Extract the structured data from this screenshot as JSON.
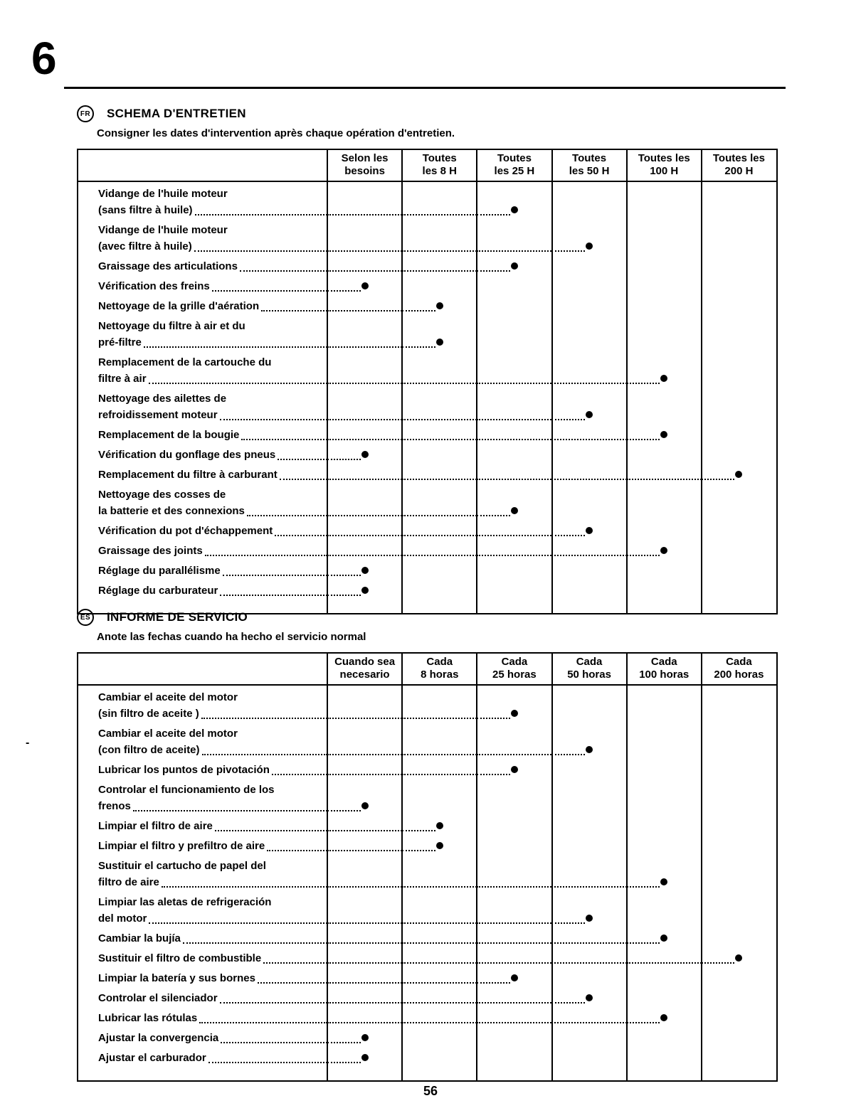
{
  "page": {
    "chapter_number": "6",
    "page_number": "56",
    "margin_mark": "-"
  },
  "bullet_color": "#000000",
  "sections": [
    {
      "lang_badge": "FR",
      "title": "SCHEMA D'ENTRETIEN",
      "subtitle": "Consigner les dates d'intervention après chaque opération d'entretien.",
      "columns": [
        [
          "Selon les",
          "besoins"
        ],
        [
          "Toutes",
          "les 8 H"
        ],
        [
          "Toutes",
          "les 25 H"
        ],
        [
          "Toutes",
          "les 50 H"
        ],
        [
          "Toutes les",
          "100 H"
        ],
        [
          "Toutes les",
          "200 H"
        ]
      ],
      "rows": [
        {
          "label_lines": [
            "Vidange de l'huile moteur",
            "(sans filtre à huile)"
          ],
          "bullet_col": 2
        },
        {
          "label_lines": [
            "Vidange de l'huile moteur",
            "(avec filtre à huile)"
          ],
          "bullet_col": 3
        },
        {
          "label_lines": [
            "Graissage des articulations"
          ],
          "bullet_col": 2
        },
        {
          "label_lines": [
            "Vérification des freins"
          ],
          "bullet_col": 0
        },
        {
          "label_lines": [
            "Nettoyage de la grille d'aération"
          ],
          "bullet_col": 1
        },
        {
          "label_lines": [
            "Nettoyage du filtre à air et du",
            "pré-filtre"
          ],
          "bullet_col": 1
        },
        {
          "label_lines": [
            "Remplacement de la cartouche du",
            "filtre à air"
          ],
          "bullet_col": 4
        },
        {
          "label_lines": [
            "Nettoyage des ailettes de",
            "refroidissement moteur"
          ],
          "bullet_col": 3
        },
        {
          "label_lines": [
            "Remplacement de la bougie"
          ],
          "bullet_col": 4
        },
        {
          "label_lines": [
            "Vérification du gonflage des pneus"
          ],
          "bullet_col": 0
        },
        {
          "label_lines": [
            "Remplacement du filtre à carburant"
          ],
          "bullet_col": 5
        },
        {
          "label_lines": [
            "Nettoyage des cosses de",
            "la batterie et des connexions"
          ],
          "bullet_col": 2
        },
        {
          "label_lines": [
            "Vérification du pot d'échappement"
          ],
          "bullet_col": 3
        },
        {
          "label_lines": [
            "Graissage des joints"
          ],
          "bullet_col": 4
        },
        {
          "label_lines": [
            "Réglage du parallélisme"
          ],
          "bullet_col": 0
        },
        {
          "label_lines": [
            "Réglage du carburateur"
          ],
          "bullet_col": 0
        }
      ]
    },
    {
      "lang_badge": "ES",
      "title": "INFORME DE SERVICIO",
      "subtitle": "Anote las fechas cuando ha hecho el servicio normal",
      "columns": [
        [
          "Cuando sea",
          "necesario"
        ],
        [
          "Cada",
          "8 horas"
        ],
        [
          "Cada",
          "25 horas"
        ],
        [
          "Cada",
          "50 horas"
        ],
        [
          "Cada",
          "100 horas"
        ],
        [
          "Cada",
          "200 horas"
        ]
      ],
      "rows": [
        {
          "label_lines": [
            "Cambiar el aceite del motor",
            "(sin filtro de aceite )"
          ],
          "bullet_col": 2
        },
        {
          "label_lines": [
            "Cambiar el aceite del motor",
            "(con filtro de aceite)"
          ],
          "bullet_col": 3
        },
        {
          "label_lines": [
            "Lubricar los puntos de pivotación"
          ],
          "bullet_col": 2
        },
        {
          "label_lines": [
            "Controlar el funcionamiento de los",
            "frenos"
          ],
          "bullet_col": 0
        },
        {
          "label_lines": [
            "Limpiar el filtro de aire"
          ],
          "bullet_col": 1
        },
        {
          "label_lines": [
            "Limpiar el filtro y prefiltro de aire"
          ],
          "bullet_col": 1
        },
        {
          "label_lines": [
            "Sustituir el cartucho de papel del",
            "filtro de aire"
          ],
          "bullet_col": 4
        },
        {
          "label_lines": [
            "Limpiar las aletas de refrigeración",
            "del motor"
          ],
          "bullet_col": 3
        },
        {
          "label_lines": [
            "Cambiar la bujía"
          ],
          "bullet_col": 4
        },
        {
          "label_lines": [
            "Sustituir el filtro de combustible"
          ],
          "bullet_col": 5
        },
        {
          "label_lines": [
            "Limpiar la batería y sus bornes"
          ],
          "bullet_col": 2
        },
        {
          "label_lines": [
            "Controlar el silenciador"
          ],
          "bullet_col": 3
        },
        {
          "label_lines": [
            "Lubricar las rótulas"
          ],
          "bullet_col": 4
        },
        {
          "label_lines": [
            "Ajustar la convergencia"
          ],
          "bullet_col": 0
        },
        {
          "label_lines": [
            "Ajustar el carburador"
          ],
          "bullet_col": 0
        }
      ]
    }
  ]
}
